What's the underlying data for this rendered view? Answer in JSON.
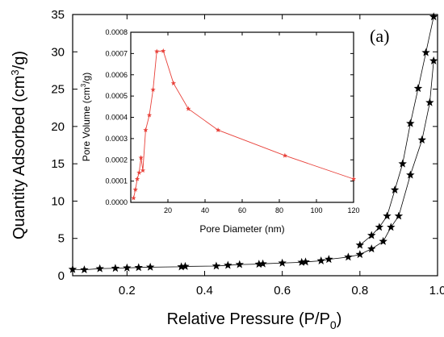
{
  "chart_data": [
    {
      "type": "line",
      "panel_label": "(a)",
      "xlabel": "Relative Pressure (P/P",
      "xlabel_sub": "0",
      "xlabel_end": ")",
      "ylabel": "Quantity Adsorbed (cm",
      "ylabel_sup": "3",
      "ylabel_end": "/g)",
      "xlim": [
        0.06,
        1.0
      ],
      "ylim": [
        0,
        35
      ],
      "xticks": [
        0.2,
        0.4,
        0.6,
        0.8,
        1.0
      ],
      "xtick_labels": [
        "0.2",
        "0.4",
        "0.6",
        "0.8",
        "1.0"
      ],
      "yticks": [
        0,
        5,
        10,
        15,
        20,
        25,
        30,
        35
      ],
      "ytick_labels": [
        "0",
        "5",
        "10",
        "15",
        "20",
        "25",
        "30",
        "35"
      ],
      "series": [
        {
          "role": "adsorption",
          "color": "#000000",
          "marker": "star",
          "points": [
            [
              0.06,
              0.85
            ],
            [
              0.09,
              0.8
            ],
            [
              0.13,
              0.95
            ],
            [
              0.17,
              1.0
            ],
            [
              0.2,
              1.05
            ],
            [
              0.23,
              1.1
            ],
            [
              0.26,
              1.15
            ],
            [
              0.34,
              1.2
            ],
            [
              0.35,
              1.25
            ],
            [
              0.43,
              1.3
            ],
            [
              0.46,
              1.4
            ],
            [
              0.49,
              1.5
            ],
            [
              0.54,
              1.55
            ],
            [
              0.55,
              1.6
            ],
            [
              0.6,
              1.7
            ],
            [
              0.65,
              1.8
            ],
            [
              0.66,
              1.85
            ],
            [
              0.7,
              2.0
            ],
            [
              0.72,
              2.2
            ],
            [
              0.77,
              2.5
            ],
            [
              0.8,
              2.85
            ],
            [
              0.83,
              3.6
            ],
            [
              0.86,
              4.6
            ],
            [
              0.88,
              6.5
            ],
            [
              0.9,
              8.0
            ],
            [
              0.93,
              13.5
            ],
            [
              0.96,
              18.2
            ],
            [
              0.98,
              23.2
            ],
            [
              0.99,
              28.8
            ]
          ]
        },
        {
          "role": "desorption",
          "color": "#000000",
          "marker": "star",
          "points": [
            [
              0.99,
              34.7
            ],
            [
              0.97,
              29.9
            ],
            [
              0.95,
              25.1
            ],
            [
              0.93,
              20.4
            ],
            [
              0.91,
              15.0
            ],
            [
              0.89,
              11.5
            ],
            [
              0.87,
              8.0
            ],
            [
              0.85,
              6.5
            ],
            [
              0.83,
              5.4
            ],
            [
              0.8,
              4.1
            ]
          ]
        }
      ]
    },
    {
      "type": "line",
      "xlabel": "Pore Diameter (nm)",
      "ylabel": "Pore Volume (cm",
      "ylabel_sup": "3",
      "ylabel_end": "/g)",
      "xlim": [
        0,
        120
      ],
      "ylim": [
        0,
        0.0008
      ],
      "xticks": [
        20,
        40,
        60,
        80,
        100,
        120
      ],
      "xtick_labels": [
        "20",
        "40",
        "60",
        "80",
        "100",
        "120"
      ],
      "yticks": [
        0,
        0.0001,
        0.0002,
        0.0003,
        0.0004,
        0.0005,
        0.0006,
        0.0007,
        0.0008
      ],
      "ytick_labels": [
        "0.0000",
        "0.0001",
        "0.0002",
        "0.0003",
        "0.0004",
        "0.0005",
        "0.0006",
        "0.0007",
        "0.0008"
      ],
      "series": [
        {
          "color": "#e8413a",
          "marker": "star",
          "points": [
            [
              1.5,
              2e-05
            ],
            [
              2.5,
              6e-05
            ],
            [
              3.5,
              0.00011
            ],
            [
              4.5,
              0.00014
            ],
            [
              5.5,
              0.00021
            ],
            [
              6.5,
              0.00015
            ],
            [
              8,
              0.00034
            ],
            [
              10,
              0.00041
            ],
            [
              12,
              0.00053
            ],
            [
              14,
              0.00071
            ],
            [
              17.5,
              0.000712
            ],
            [
              23,
              0.00056
            ],
            [
              31,
              0.00044
            ],
            [
              47,
              0.00034
            ],
            [
              83,
              0.00022
            ],
            [
              120,
              0.00011
            ]
          ]
        }
      ]
    }
  ]
}
